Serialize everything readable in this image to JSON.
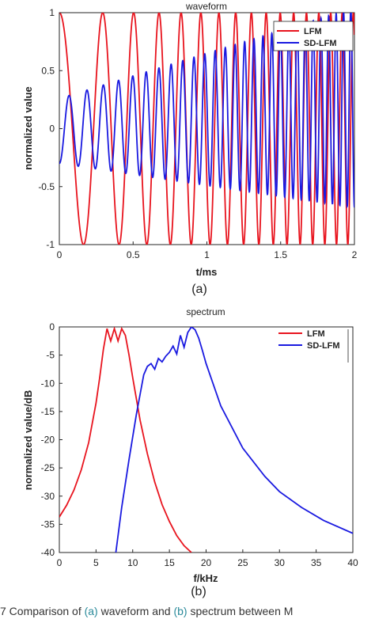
{
  "colors": {
    "lfm": "#e8141e",
    "sdlfm": "#1a1ae0",
    "caption_ref": "#2a8a9a"
  },
  "caption": {
    "prefix": "7   Comparison of ",
    "ref_a": "(a)",
    "mid1": " waveform and ",
    "ref_b": "(b)",
    "mid2": " spectrum between M"
  },
  "chart_data": [
    {
      "type": "line",
      "panel_label": "(a)",
      "title": "waveform",
      "xlabel": "t/ms",
      "ylabel": "normalized value",
      "xlim": [
        0,
        2
      ],
      "ylim": [
        -1,
        1
      ],
      "xticks": [
        0,
        0.5,
        1,
        1.5,
        2
      ],
      "xtick_labels": [
        "0",
        "0.5",
        "1",
        "1.5",
        "2"
      ],
      "yticks": [
        -1,
        -0.5,
        0,
        0.5,
        1
      ],
      "ytick_labels": [
        "-1",
        "-0.5",
        "0",
        "0.5",
        "1"
      ],
      "grid": false,
      "legend": "top-right",
      "series": [
        {
          "name": "LFM",
          "color": "#e8141e",
          "model": "cos(2*pi*(f0*t + k*t^2/2))",
          "f0_khz": 2.6,
          "sweep_khz_per_ms": 5.45
        },
        {
          "name": "SD-LFM",
          "color": "#1a1ae0",
          "model": "(a0 + a1*t)*cos(2*pi*(g0*t + m*t^2/2)) + (c0 + c1*t)",
          "g0_khz": 7.4,
          "sweep_khz_per_ms": 6.6,
          "a0": 0.28,
          "a1": 0.29,
          "c0": -0.02,
          "c1": 0.1
        }
      ]
    },
    {
      "type": "line",
      "panel_label": "(b)",
      "title": "spectrum",
      "xlabel": "f/kHz",
      "ylabel": "normalized value/dB",
      "xlim": [
        0,
        40
      ],
      "ylim": [
        -40,
        0
      ],
      "xticks": [
        0,
        5,
        10,
        15,
        20,
        25,
        30,
        35,
        40
      ],
      "xtick_labels": [
        "0",
        "5",
        "10",
        "15",
        "20",
        "25",
        "30",
        "35",
        "40"
      ],
      "yticks": [
        -40,
        -35,
        -30,
        -25,
        -20,
        -15,
        -10,
        -5,
        0
      ],
      "ytick_labels": [
        "-40",
        "-35",
        "-30",
        "-25",
        "-20",
        "-15",
        "-10",
        "-5",
        "0"
      ],
      "grid": false,
      "legend": "top-right",
      "series": [
        {
          "name": "LFM",
          "color": "#e8141e",
          "x": [
            0,
            1,
            2,
            3,
            4,
            5,
            5.5,
            6,
            6.5,
            7,
            7.5,
            8,
            8.5,
            9,
            9.5,
            10,
            11,
            12,
            13,
            14,
            15,
            16,
            17,
            18
          ],
          "y": [
            -33.7,
            -31.6,
            -28.9,
            -25.3,
            -20.5,
            -13.5,
            -9.0,
            -4.0,
            -0.3,
            -2.5,
            -0.3,
            -2.5,
            -0.3,
            -1.5,
            -5.0,
            -9.0,
            -16.5,
            -22.5,
            -27.5,
            -31.5,
            -34.5,
            -37.0,
            -38.8,
            -40.0
          ]
        },
        {
          "name": "SD-LFM",
          "color": "#1a1ae0",
          "x": [
            7.7,
            8.5,
            9.5,
            10.5,
            11,
            11.5,
            12,
            12.5,
            13,
            13.5,
            14,
            14.5,
            15,
            15.5,
            16,
            16.5,
            17,
            17.5,
            18,
            18.5,
            19,
            19.5,
            20,
            22,
            25,
            28,
            30,
            33,
            36,
            40
          ],
          "y": [
            -40,
            -32,
            -23.5,
            -15.5,
            -12,
            -8.5,
            -7.0,
            -6.5,
            -7.5,
            -5.6,
            -6.2,
            -5.2,
            -4.5,
            -3.4,
            -4.8,
            -1.5,
            -3.6,
            -1.0,
            0,
            -0.5,
            -2.0,
            -4.2,
            -6.5,
            -14.0,
            -21.5,
            -26.5,
            -29.2,
            -32.0,
            -34.3,
            -36.6
          ]
        }
      ]
    }
  ]
}
